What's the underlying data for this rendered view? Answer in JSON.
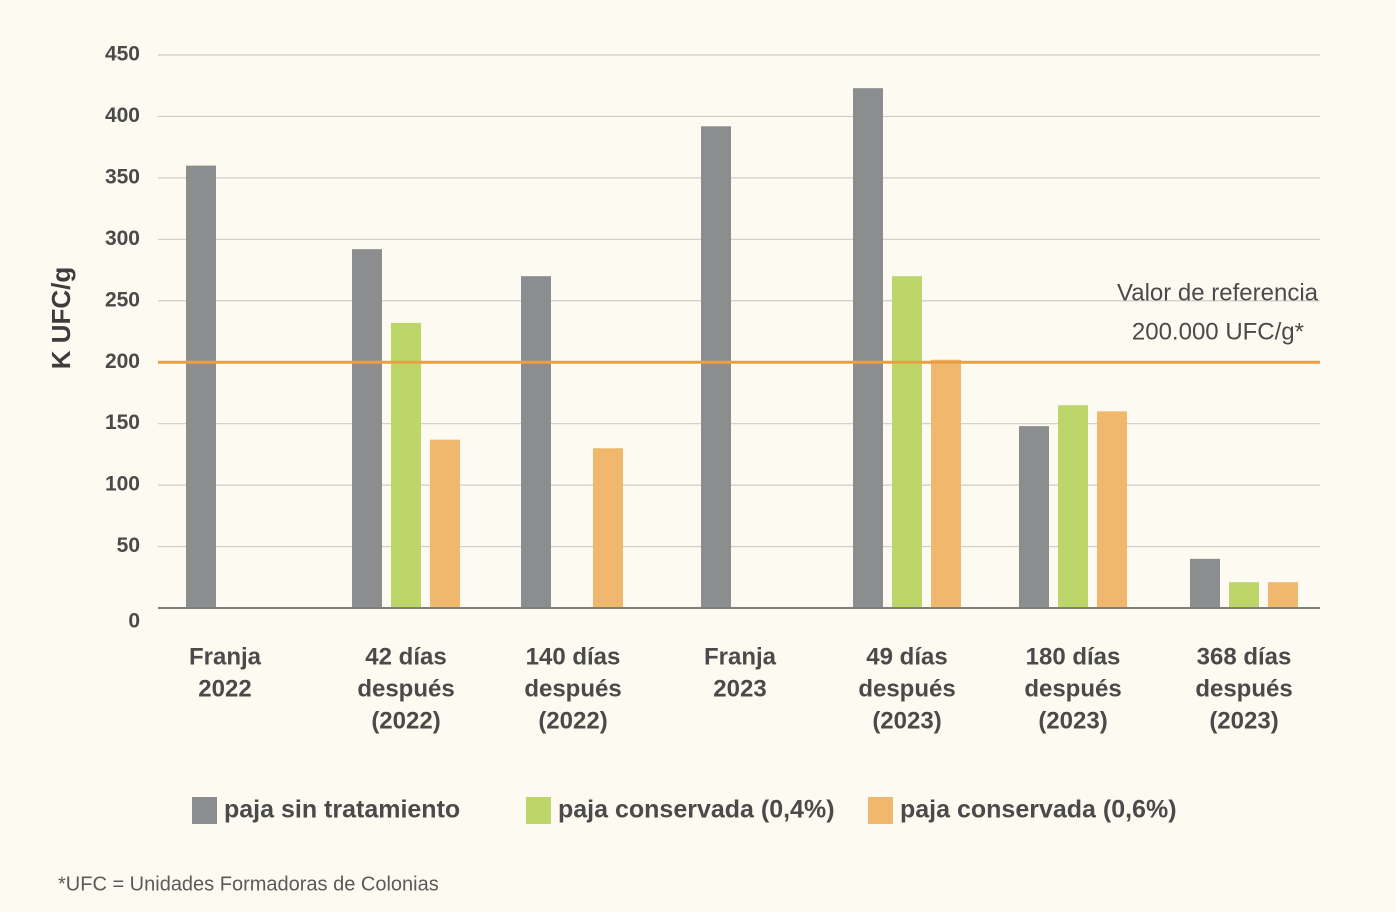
{
  "chart_data": {
    "type": "bar",
    "ylabel": "K UFC/g",
    "xlabel": "",
    "ylim": [
      0,
      450
    ],
    "yticks": [
      0,
      50,
      100,
      150,
      200,
      250,
      300,
      350,
      400,
      450
    ],
    "grid": true,
    "legend_position": "bottom",
    "categories": [
      [
        "Franja",
        "2022"
      ],
      [
        "42 días",
        "después",
        "(2022)"
      ],
      [
        "140 días",
        "después",
        "(2022)"
      ],
      [
        "Franja",
        "2023"
      ],
      [
        "49 días",
        "después",
        "(2023)"
      ],
      [
        "180 días",
        "después",
        "(2023)"
      ],
      [
        "368 días",
        "después",
        "(2023)"
      ]
    ],
    "series": [
      {
        "name": "paja sin tratamiento",
        "color": "#8c8d8f",
        "values": [
          360,
          292,
          270,
          392,
          423,
          148,
          40
        ]
      },
      {
        "name": "paja conservada (0,4%)",
        "color": "#bcd66a",
        "values": [
          null,
          232,
          null,
          null,
          270,
          165,
          21
        ]
      },
      {
        "name": "paja conservada (0,6%)",
        "color": "#efb86c",
        "values": [
          null,
          137,
          130,
          null,
          202,
          160,
          21
        ]
      }
    ],
    "reference_line": {
      "value": 200,
      "color": "#e8a045",
      "label": [
        "Valor de referencia",
        "200.000 UFC/g*"
      ]
    },
    "footnote": "*UFC = Unidades Formadoras de Colonias"
  }
}
